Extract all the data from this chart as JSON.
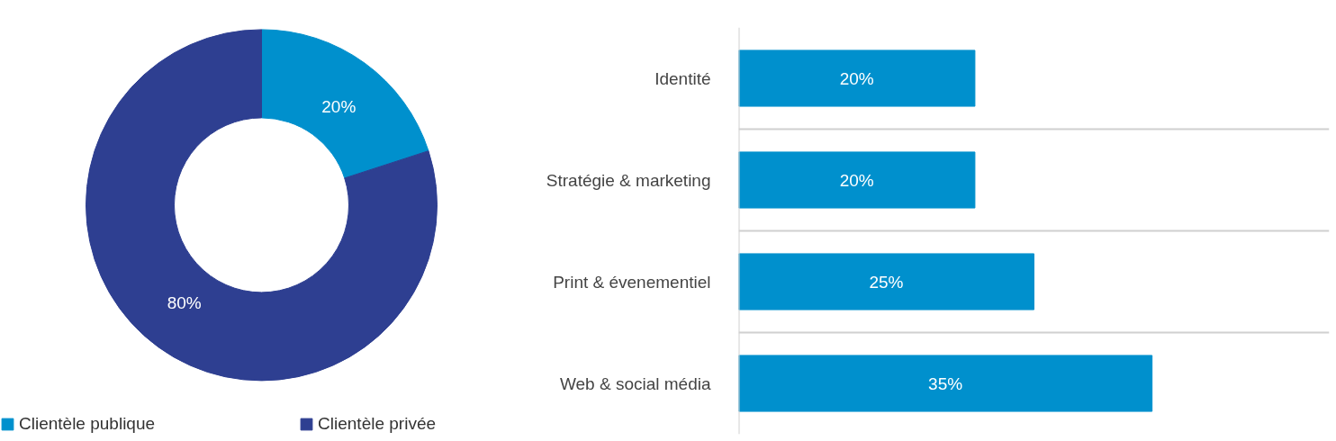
{
  "chart_data": [
    {
      "type": "donut",
      "categories": [
        "Clientèle publique",
        "Clientèle privée"
      ],
      "values": [
        20,
        80
      ],
      "value_labels": [
        "20%",
        "80%"
      ],
      "colors": [
        "#0090cd",
        "#2e3f91"
      ],
      "legend": "bottom"
    },
    {
      "type": "bar",
      "orientation": "horizontal",
      "categories": [
        "Identité",
        "Stratégie & marketing",
        "Print & évenementiel",
        "Web & social média"
      ],
      "values": [
        20,
        20,
        25,
        35
      ],
      "value_labels": [
        "20%",
        "20%",
        "25%",
        "35%"
      ],
      "color": "#0090cd",
      "tick_labels": "y",
      "grid": "y"
    }
  ]
}
